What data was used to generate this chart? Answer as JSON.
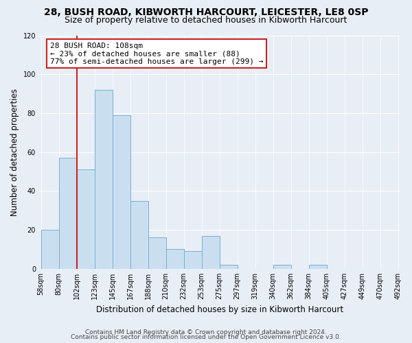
{
  "title": "28, BUSH ROAD, KIBWORTH HARCOURT, LEICESTER, LE8 0SP",
  "subtitle": "Size of property relative to detached houses in Kibworth Harcourt",
  "xlabel": "Distribution of detached houses by size in Kibworth Harcourt",
  "ylabel": "Number of detached properties",
  "bin_labels": [
    "58sqm",
    "80sqm",
    "102sqm",
    "123sqm",
    "145sqm",
    "167sqm",
    "188sqm",
    "210sqm",
    "232sqm",
    "253sqm",
    "275sqm",
    "297sqm",
    "319sqm",
    "340sqm",
    "362sqm",
    "384sqm",
    "405sqm",
    "427sqm",
    "449sqm",
    "470sqm",
    "492sqm"
  ],
  "bar_values": [
    20,
    57,
    51,
    92,
    79,
    35,
    16,
    10,
    9,
    17,
    2,
    0,
    0,
    2,
    0,
    2,
    0,
    0,
    0,
    0,
    0
  ],
  "bar_color": "#c9dff0",
  "bar_edge_color": "#7bafd4",
  "ylim": [
    0,
    120
  ],
  "yticks": [
    0,
    20,
    40,
    60,
    80,
    100,
    120
  ],
  "property_line_index": 2,
  "property_line_color": "#cc2222",
  "annotation_title": "28 BUSH ROAD: 108sqm",
  "annotation_line1": "← 23% of detached houses are smaller (88)",
  "annotation_line2": "77% of semi-detached houses are larger (299) →",
  "annotation_box_facecolor": "#ffffff",
  "annotation_box_edgecolor": "#cc2222",
  "footer_line1": "Contains HM Land Registry data © Crown copyright and database right 2024.",
  "footer_line2": "Contains public sector information licensed under the Open Government Licence v3.0.",
  "background_color": "#e8eef5",
  "plot_background": "#e8eef5",
  "grid_color": "#ffffff",
  "title_fontsize": 10,
  "subtitle_fontsize": 9,
  "axis_label_fontsize": 8.5,
  "tick_fontsize": 7,
  "annotation_fontsize": 8,
  "footer_fontsize": 6.5
}
